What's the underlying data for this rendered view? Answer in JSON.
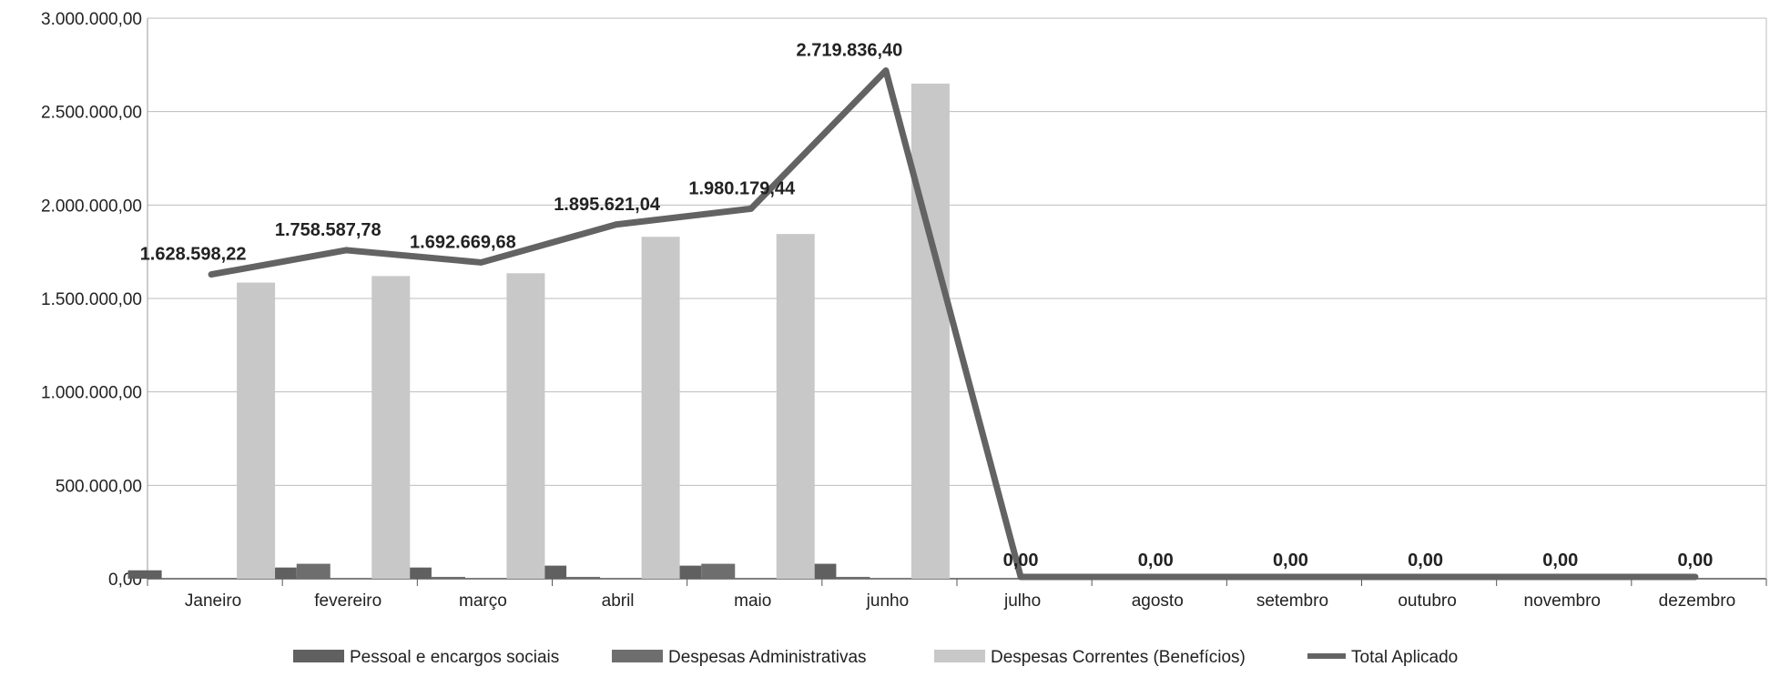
{
  "chart_data": {
    "type": "bar",
    "categories": [
      "Janeiro",
      "fevereiro",
      "março",
      "abril",
      "maio",
      "junho",
      "julho",
      "agosto",
      "setembro",
      "outubro",
      "novembro",
      "dezembro"
    ],
    "series": [
      {
        "name": "Pessoal e encargos sociais",
        "kind": "bar",
        "color": "#606060",
        "values": [
          45000,
          60000,
          60000,
          70000,
          70000,
          80000,
          0,
          0,
          0,
          0,
          0,
          0
        ]
      },
      {
        "name": "Despesas Administrativas",
        "kind": "bar",
        "color": "#6e6e6e",
        "values": [
          0,
          80000,
          10000,
          10000,
          80000,
          10000,
          0,
          0,
          0,
          0,
          0,
          0
        ]
      },
      {
        "name": "Despesas Correntes (Benefícios)",
        "kind": "bar",
        "color": "#c8c8c8",
        "values": [
          1585000,
          1620000,
          1635000,
          1830000,
          1845000,
          2650000,
          0,
          0,
          0,
          0,
          0,
          0
        ]
      },
      {
        "name": "Total Aplicado",
        "kind": "line",
        "color": "#636363",
        "values": [
          1628598.22,
          1758587.78,
          1692669.68,
          1895621.04,
          1980179.44,
          2719836.4,
          0,
          0,
          0,
          0,
          0,
          0
        ],
        "labels": [
          "1.628.598,22",
          "1.758.587,78",
          "1.692.669,68",
          "1.895.621,04",
          "1.980.179,44",
          "2.719.836,40",
          "0,00",
          "0,00",
          "0,00",
          "0,00",
          "0,00",
          "0,00"
        ]
      }
    ],
    "yticks": [
      0,
      500000,
      1000000,
      1500000,
      2000000,
      2500000,
      3000000
    ],
    "ytick_labels": [
      "0,00",
      "500.000,00",
      "1.000.000,00",
      "1.500.000,00",
      "2.000.000,00",
      "2.500.000,00",
      "3.000.000,00"
    ],
    "ylim": [
      0,
      3000000
    ],
    "grid": true,
    "legend": "bottom"
  }
}
